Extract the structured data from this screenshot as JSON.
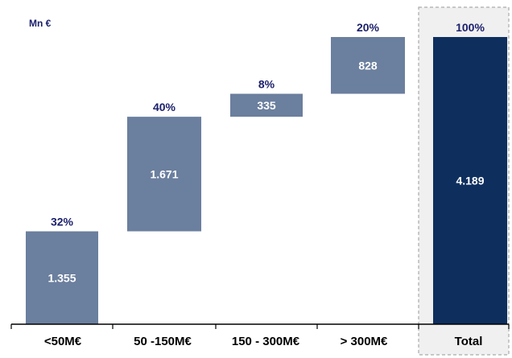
{
  "chart_data": {
    "type": "bar",
    "subtype": "waterfall",
    "unit_label": "Mn €",
    "categories": [
      "<50M€",
      "50 -150M€",
      "150 - 300M€",
      "> 300M€",
      "Total"
    ],
    "values": [
      1355,
      1671,
      335,
      828,
      4189
    ],
    "value_labels": [
      "1.355",
      "1.671",
      "335",
      "828",
      "4.189"
    ],
    "percent_labels": [
      "32%",
      "40%",
      "8%",
      "20%",
      "100%"
    ],
    "ylim": [
      0,
      4189
    ],
    "total_index": 4,
    "colors": {
      "segment": "#6b7f9e",
      "total": "#0e2f5e",
      "percent_text": "#1a1f6b",
      "value_text": "#ffffff",
      "axis": "#000000",
      "divider": "#aaaaaa"
    },
    "grid": false,
    "legend": "none"
  }
}
